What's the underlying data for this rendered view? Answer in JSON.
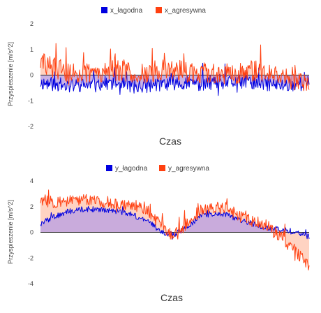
{
  "chart_data": [
    {
      "type": "area",
      "xlabel": "Czas",
      "ylabel": "Przyspieszenie [m/s^2]",
      "ylim": [
        -2,
        2
      ],
      "yticks": [
        -2,
        -1,
        0,
        1,
        2
      ],
      "grid": false,
      "legend": "top-center",
      "n_samples": 400,
      "series": [
        {
          "name": "x_łagodna",
          "color": "#0000e0",
          "fill": "#bfa3e0",
          "values": [
            -0.3,
            -0.35,
            -0.4,
            -0.4,
            -0.35,
            -0.3,
            -0.35,
            -0.45,
            -0.4,
            -0.35,
            -0.3,
            -0.3,
            -0.35,
            -0.35,
            -0.3,
            -0.25,
            -0.3,
            -0.35,
            -0.4,
            -0.35,
            -0.3
          ]
        },
        {
          "name": "x_agresywna",
          "color": "#ff4010",
          "fill": "#ffc4ae",
          "values": [
            0.5,
            0.3,
            0.1,
            0.05,
            0.1,
            0.2,
            0.15,
            0.1,
            0.1,
            0.2,
            0.25,
            0.1,
            0.05,
            0.1,
            0.05,
            0.1,
            0.2,
            0.15,
            0.0,
            -0.2,
            -0.5
          ]
        }
      ]
    },
    {
      "type": "area",
      "xlabel": "Czas",
      "ylabel": "Przyspieszenie [m/s^2]",
      "ylim": [
        -4,
        4
      ],
      "yticks": [
        -4,
        -2,
        0,
        2,
        4
      ],
      "grid": false,
      "legend": "top-center",
      "n_samples": 400,
      "series": [
        {
          "name": "y_łagodna",
          "color": "#0000e0",
          "fill": "#bfa3e0",
          "values": [
            0.7,
            1.2,
            1.6,
            1.8,
            1.8,
            1.7,
            1.6,
            1.3,
            0.9,
            0.0,
            -0.2,
            0.5,
            1.3,
            1.5,
            1.3,
            0.9,
            0.6,
            0.3,
            0.2,
            0.0,
            -0.3
          ]
        },
        {
          "name": "y_agresywna",
          "color": "#ff4010",
          "fill": "#ffc4ae",
          "values": [
            2.5,
            2.4,
            2.4,
            2.5,
            2.5,
            2.3,
            2.2,
            2.1,
            1.8,
            0.5,
            -0.3,
            0.8,
            1.8,
            2.0,
            1.8,
            1.2,
            0.8,
            0.4,
            -0.5,
            -1.5,
            -2.5
          ]
        }
      ]
    }
  ]
}
